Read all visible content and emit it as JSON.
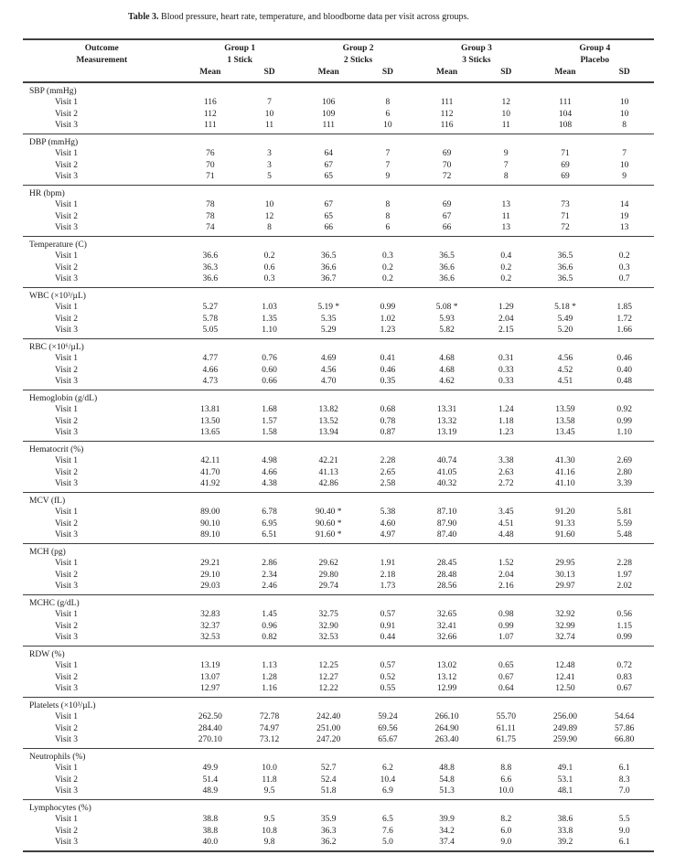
{
  "caption": {
    "label": "Table 3.",
    "text": " Blood pressure, heart rate, temperature, and bloodborne data per visit across groups."
  },
  "table": {
    "outcome_line1": "Outcome",
    "outcome_line2": "Measurement",
    "groups": [
      {
        "name": "Group 1",
        "treatment": "1 Stick"
      },
      {
        "name": "Group 2",
        "treatment": "2 Sticks"
      },
      {
        "name": "Group 3",
        "treatment": "3 Sticks"
      },
      {
        "name": "Group 4",
        "treatment": "Placebo"
      }
    ],
    "stat_headers": [
      "Mean",
      "SD"
    ],
    "sections": [
      {
        "label": "SBP (mmHg)",
        "rows": [
          {
            "label": "Visit 1",
            "values": [
              "116",
              "7",
              "106",
              "8",
              "111",
              "12",
              "111",
              "10"
            ]
          },
          {
            "label": "Visit 2",
            "values": [
              "112",
              "10",
              "109",
              "6",
              "112",
              "10",
              "104",
              "10"
            ]
          },
          {
            "label": "Visit 3",
            "values": [
              "111",
              "11",
              "111",
              "10",
              "116",
              "11",
              "108",
              "8"
            ]
          }
        ]
      },
      {
        "label": "DBP (mmHg)",
        "rows": [
          {
            "label": "Visit 1",
            "values": [
              "76",
              "3",
              "64",
              "7",
              "69",
              "9",
              "71",
              "7"
            ]
          },
          {
            "label": "Visit 2",
            "values": [
              "70",
              "3",
              "67",
              "7",
              "70",
              "7",
              "69",
              "10"
            ]
          },
          {
            "label": "Visit 3",
            "values": [
              "71",
              "5",
              "65",
              "9",
              "72",
              "8",
              "69",
              "9"
            ]
          }
        ]
      },
      {
        "label": "HR (bpm)",
        "rows": [
          {
            "label": "Visit 1",
            "values": [
              "78",
              "10",
              "67",
              "8",
              "69",
              "13",
              "73",
              "14"
            ]
          },
          {
            "label": "Visit 2",
            "values": [
              "78",
              "12",
              "65",
              "8",
              "67",
              "11",
              "71",
              "19"
            ]
          },
          {
            "label": "Visit 3",
            "values": [
              "74",
              "8",
              "66",
              "6",
              "66",
              "13",
              "72",
              "13"
            ]
          }
        ]
      },
      {
        "label": "Temperature (C)",
        "rows": [
          {
            "label": "Visit 1",
            "values": [
              "36.6",
              "0.2",
              "36.5",
              "0.3",
              "36.5",
              "0.4",
              "36.5",
              "0.2"
            ]
          },
          {
            "label": "Visit 2",
            "values": [
              "36.3",
              "0.6",
              "36.6",
              "0.2",
              "36.6",
              "0.2",
              "36.6",
              "0.3"
            ]
          },
          {
            "label": "Visit 3",
            "values": [
              "36.6",
              "0.3",
              "36.7",
              "0.2",
              "36.6",
              "0.2",
              "36.5",
              "0.7"
            ]
          }
        ]
      },
      {
        "label": "WBC (×10³/µL)",
        "rows": [
          {
            "label": "Visit 1",
            "values": [
              "5.27",
              "1.03",
              "5.19 *",
              "0.99",
              "5.08 *",
              "1.29",
              "5.18 *",
              "1.85"
            ]
          },
          {
            "label": "Visit 2",
            "values": [
              "5.78",
              "1.35",
              "5.35",
              "1.02",
              "5.93",
              "2.04",
              "5.49",
              "1.72"
            ]
          },
          {
            "label": "Visit 3",
            "values": [
              "5.05",
              "1.10",
              "5.29",
              "1.23",
              "5.82",
              "2.15",
              "5.20",
              "1.66"
            ]
          }
        ]
      },
      {
        "label": "RBC (×10⁶/µL)",
        "rows": [
          {
            "label": "Visit 1",
            "values": [
              "4.77",
              "0.76",
              "4.69",
              "0.41",
              "4.68",
              "0.31",
              "4.56",
              "0.46"
            ]
          },
          {
            "label": "Visit 2",
            "values": [
              "4.66",
              "0.60",
              "4.56",
              "0.46",
              "4.68",
              "0.33",
              "4.52",
              "0.40"
            ]
          },
          {
            "label": "Visit 3",
            "values": [
              "4.73",
              "0.66",
              "4.70",
              "0.35",
              "4.62",
              "0.33",
              "4.51",
              "0.48"
            ]
          }
        ]
      },
      {
        "label": "Hemoglobin (g/dL)",
        "rows": [
          {
            "label": "Visit 1",
            "values": [
              "13.81",
              "1.68",
              "13.82",
              "0.68",
              "13.31",
              "1.24",
              "13.59",
              "0.92"
            ]
          },
          {
            "label": "Visit 2",
            "values": [
              "13.50",
              "1.57",
              "13.52",
              "0.78",
              "13.32",
              "1.18",
              "13.58",
              "0.99"
            ]
          },
          {
            "label": "Visit 3",
            "values": [
              "13.65",
              "1.58",
              "13.94",
              "0.87",
              "13.19",
              "1.23",
              "13.45",
              "1.10"
            ]
          }
        ]
      },
      {
        "label": "Hematocrit (%)",
        "rows": [
          {
            "label": "Visit 1",
            "values": [
              "42.11",
              "4.98",
              "42.21",
              "2.28",
              "40.74",
              "3.38",
              "41.30",
              "2.69"
            ]
          },
          {
            "label": "Visit 2",
            "values": [
              "41.70",
              "4.66",
              "41.13",
              "2.65",
              "41.05",
              "2.63",
              "41.16",
              "2.80"
            ]
          },
          {
            "label": "Visit 3",
            "values": [
              "41.92",
              "4.38",
              "42.86",
              "2.58",
              "40.32",
              "2.72",
              "41.10",
              "3.39"
            ]
          }
        ]
      },
      {
        "label": "MCV (fL)",
        "rows": [
          {
            "label": "Visit 1",
            "values": [
              "89.00",
              "6.78",
              "90.40 *",
              "5.38",
              "87.10",
              "3.45",
              "91.20",
              "5.81"
            ]
          },
          {
            "label": "Visit 2",
            "values": [
              "90.10",
              "6.95",
              "90.60 *",
              "4.60",
              "87.90",
              "4.51",
              "91.33",
              "5.59"
            ]
          },
          {
            "label": "Visit 3",
            "values": [
              "89.10",
              "6.51",
              "91.60 *",
              "4.97",
              "87.40",
              "4.48",
              "91.60",
              "5.48"
            ]
          }
        ]
      },
      {
        "label": "MCH (pg)",
        "rows": [
          {
            "label": "Visit 1",
            "values": [
              "29.21",
              "2.86",
              "29.62",
              "1.91",
              "28.45",
              "1.52",
              "29.95",
              "2.28"
            ]
          },
          {
            "label": "Visit 2",
            "values": [
              "29.10",
              "2.34",
              "29.80",
              "2.18",
              "28.48",
              "2.04",
              "30.13",
              "1.97"
            ]
          },
          {
            "label": "Visit 3",
            "values": [
              "29.03",
              "2.46",
              "29.74",
              "1.73",
              "28.56",
              "2.16",
              "29.97",
              "2.02"
            ]
          }
        ]
      },
      {
        "label": "MCHC (g/dL)",
        "rows": [
          {
            "label": "Visit 1",
            "values": [
              "32.83",
              "1.45",
              "32.75",
              "0.57",
              "32.65",
              "0.98",
              "32.92",
              "0.56"
            ]
          },
          {
            "label": "Visit 2",
            "values": [
              "32.37",
              "0.96",
              "32.90",
              "0.91",
              "32.41",
              "0.99",
              "32.99",
              "1.15"
            ]
          },
          {
            "label": "Visit 3",
            "values": [
              "32.53",
              "0.82",
              "32.53",
              "0.44",
              "32.66",
              "1.07",
              "32.74",
              "0.99"
            ]
          }
        ]
      },
      {
        "label": "RDW (%)",
        "rows": [
          {
            "label": "Visit 1",
            "values": [
              "13.19",
              "1.13",
              "12.25",
              "0.57",
              "13.02",
              "0.65",
              "12.48",
              "0.72"
            ]
          },
          {
            "label": "Visit 2",
            "values": [
              "13.07",
              "1.28",
              "12.27",
              "0.52",
              "13.12",
              "0.67",
              "12.41",
              "0.83"
            ]
          },
          {
            "label": "Visit 3",
            "values": [
              "12.97",
              "1.16",
              "12.22",
              "0.55",
              "12.99",
              "0.64",
              "12.50",
              "0.67"
            ]
          }
        ]
      },
      {
        "label": "Platelets (×10³/µL)",
        "rows": [
          {
            "label": "Visit 1",
            "values": [
              "262.50",
              "72.78",
              "242.40",
              "59.24",
              "266.10",
              "55.70",
              "256.00",
              "54.64"
            ]
          },
          {
            "label": "Visit 2",
            "values": [
              "284.40",
              "74.97",
              "251.00",
              "69.56",
              "264.90",
              "61.11",
              "249.89",
              "57.86"
            ]
          },
          {
            "label": "Visit 3",
            "values": [
              "270.10",
              "73.12",
              "247.20",
              "65.67",
              "263.40",
              "61.75",
              "259.90",
              "66.80"
            ]
          }
        ]
      },
      {
        "label": "Neutrophils (%)",
        "rows": [
          {
            "label": "Visit 1",
            "values": [
              "49.9",
              "10.0",
              "52.7",
              "6.2",
              "48.8",
              "8.8",
              "49.1",
              "6.1"
            ]
          },
          {
            "label": "Visit 2",
            "values": [
              "51.4",
              "11.8",
              "52.4",
              "10.4",
              "54.8",
              "6.6",
              "53.1",
              "8.3"
            ]
          },
          {
            "label": "Visit 3",
            "values": [
              "48.9",
              "9.5",
              "51.8",
              "6.9",
              "51.3",
              "10.0",
              "48.1",
              "7.0"
            ]
          }
        ]
      },
      {
        "label": "Lymphocytes (%)",
        "rows": [
          {
            "label": "Visit 1",
            "values": [
              "38.8",
              "9.5",
              "35.9",
              "6.5",
              "39.9",
              "8.2",
              "38.6",
              "5.5"
            ]
          },
          {
            "label": "Visit 2",
            "values": [
              "38.8",
              "10.8",
              "36.3",
              "7.6",
              "34.2",
              "6.0",
              "33.8",
              "9.0"
            ]
          },
          {
            "label": "Visit 3",
            "values": [
              "40.0",
              "9.8",
              "36.2",
              "5.0",
              "37.4",
              "9.0",
              "39.2",
              "6.1"
            ]
          }
        ]
      }
    ]
  }
}
